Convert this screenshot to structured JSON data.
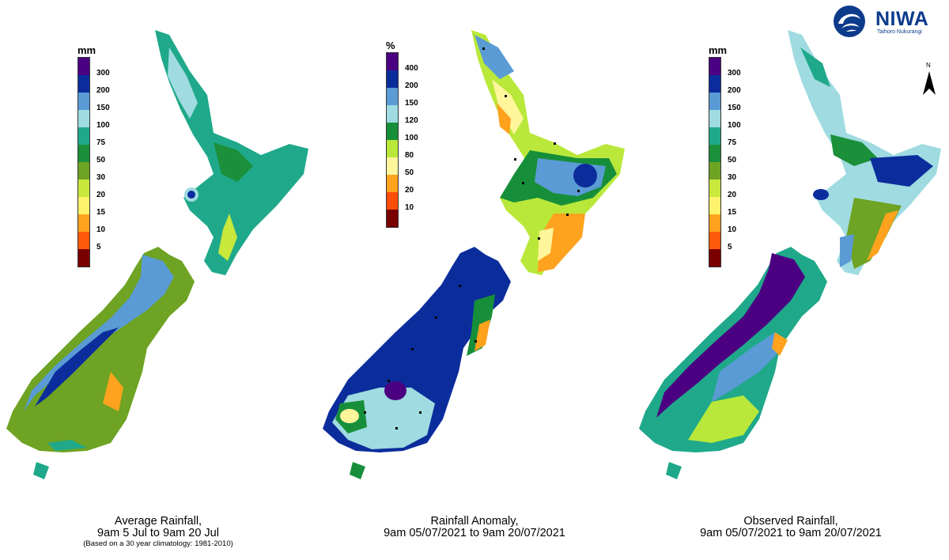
{
  "logo": {
    "name": "NIWA",
    "subtitle": "Taihoro Nukurangi"
  },
  "north_label": "N",
  "panels": [
    {
      "caption": {
        "line1": "Average Rainfall,",
        "line2": "9am 5 Jul to 9am 20 Jul",
        "note": "(Based on a 30 year climatology: 1981-2010)"
      },
      "legend": {
        "unit": "mm",
        "labels": [
          "300",
          "200",
          "150",
          "100",
          "75",
          "50",
          "30",
          "20",
          "15",
          "10",
          "5"
        ],
        "colors": [
          "#4b0082",
          "#0b2d9c",
          "#5a9bd5",
          "#9fdbe0",
          "#1fa98a",
          "#1b8f3a",
          "#6ea323",
          "#c8e83c",
          "#fff36b",
          "#ffa21e",
          "#ff5a0a",
          "#7a0000"
        ]
      }
    },
    {
      "caption": {
        "line1": "Rainfall Anomaly,",
        "line2": "9am 05/07/2021 to 9am 20/07/2021"
      },
      "legend": {
        "unit": "%",
        "labels": [
          "400",
          "200",
          "150",
          "120",
          "100",
          "80",
          "50",
          "20",
          "10"
        ],
        "colors": [
          "#4b0082",
          "#0b2d9c",
          "#5a9bd5",
          "#9fdbe0",
          "#178f3a",
          "#b9e83a",
          "#fff59b",
          "#ffa21e",
          "#ff4d0a",
          "#7a0000"
        ]
      }
    },
    {
      "caption": {
        "line1": "Observed Rainfall,",
        "line2": "9am 05/07/2021 to 9am 20/07/2021"
      },
      "legend": {
        "unit": "mm",
        "labels": [
          "300",
          "200",
          "150",
          "100",
          "75",
          "50",
          "30",
          "20",
          "15",
          "10",
          "5"
        ],
        "colors": [
          "#4b0082",
          "#0b2d9c",
          "#5a9bd5",
          "#9fdbe0",
          "#1fa98a",
          "#1b8f3a",
          "#6ea323",
          "#c8e83c",
          "#fff36b",
          "#ffa21e",
          "#ff5a0a",
          "#7a0000"
        ]
      }
    }
  ]
}
